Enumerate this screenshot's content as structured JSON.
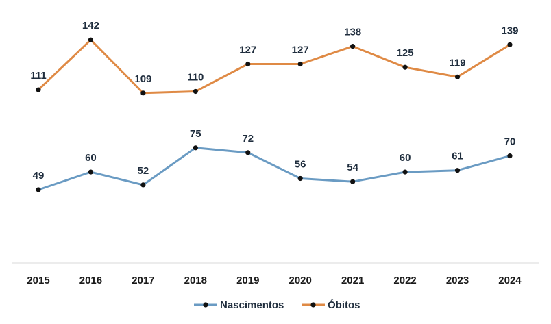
{
  "chart_data": {
    "type": "line",
    "x": [
      "2015",
      "2016",
      "2017",
      "2018",
      "2019",
      "2020",
      "2021",
      "2022",
      "2023",
      "2024"
    ],
    "series": [
      {
        "name": "Nascimentos",
        "values": [
          49,
          60,
          52,
          75,
          72,
          56,
          54,
          60,
          61,
          70
        ],
        "color": "#6a9bc3"
      },
      {
        "name": "Óbitos",
        "values": [
          111,
          142,
          109,
          110,
          127,
          127,
          138,
          125,
          119,
          139
        ],
        "color": "#df8a45"
      }
    ],
    "marker_color": "#111111",
    "axis_color": "#d9d9d9",
    "data_labels": true,
    "grid": false,
    "legend": "bottom-center",
    "ylim": [
      -35,
      175
    ]
  }
}
